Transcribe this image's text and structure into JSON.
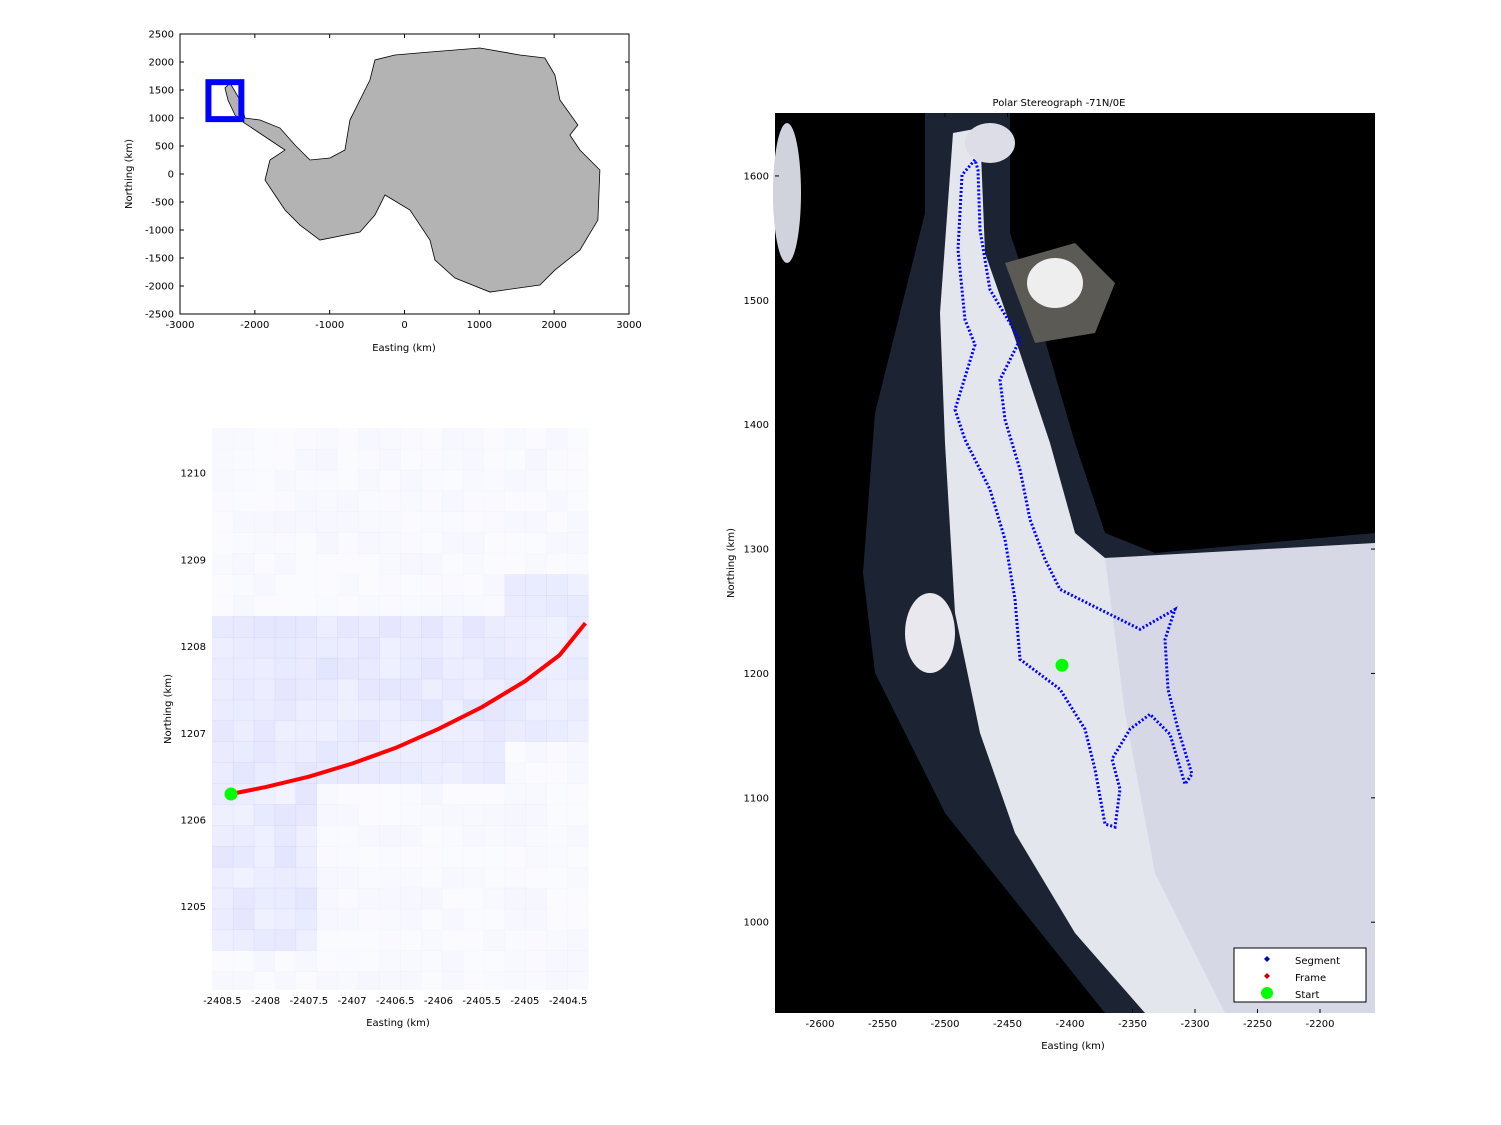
{
  "chart_data": [
    {
      "type": "map",
      "title": "",
      "xlabel": "Easting (km)",
      "ylabel": "Northing (km)",
      "xlim": [
        -3000,
        3000
      ],
      "ylim": [
        -2500,
        2500
      ],
      "xticks": [
        -3000,
        -2000,
        -1000,
        0,
        1000,
        2000,
        3000
      ],
      "yticks": [
        -2500,
        -2000,
        -1500,
        -1000,
        -500,
        0,
        500,
        1000,
        1500,
        2000,
        2500
      ],
      "grid": false,
      "land_color": "#b3b3b3",
      "coastline": [
        [
          -2332,
          1625
        ],
        [
          -2198,
          1321
        ],
        [
          -2132,
          1000
        ],
        [
          -1931,
          964
        ],
        [
          -1664,
          821
        ],
        [
          -1464,
          518
        ],
        [
          -1263,
          250
        ],
        [
          -996,
          285
        ],
        [
          -796,
          428
        ],
        [
          -729,
          964
        ],
        [
          -462,
          1678
        ],
        [
          -395,
          2036
        ],
        [
          -128,
          2125
        ],
        [
          340,
          2179
        ],
        [
          1008,
          2250
        ],
        [
          1542,
          2125
        ],
        [
          1876,
          2071
        ],
        [
          2010,
          1768
        ],
        [
          2077,
          1321
        ],
        [
          2317,
          875
        ],
        [
          2210,
          696
        ],
        [
          2344,
          428
        ],
        [
          2611,
          71
        ],
        [
          2584,
          -822
        ],
        [
          2344,
          -1358
        ],
        [
          2010,
          -1715
        ],
        [
          1810,
          -1983
        ],
        [
          1142,
          -2108
        ],
        [
          674,
          -1858
        ],
        [
          407,
          -1536
        ],
        [
          340,
          -1179
        ],
        [
          73,
          -643
        ],
        [
          -261,
          -375
        ],
        [
          -395,
          -733
        ],
        [
          -595,
          -1036
        ],
        [
          -1130,
          -1179
        ],
        [
          -1397,
          -911
        ],
        [
          -1597,
          -643
        ],
        [
          -1731,
          -375
        ],
        [
          -1864,
          -108
        ],
        [
          -1798,
          250
        ],
        [
          -1597,
          428
        ],
        [
          -1798,
          607
        ],
        [
          -1998,
          786
        ],
        [
          -2158,
          928
        ],
        [
          -2265,
          1053
        ],
        [
          -2359,
          1321
        ],
        [
          -2399,
          1536
        ]
      ],
      "region_box": {
        "x": [
          -2620,
          -2180
        ],
        "y": [
          980,
          1640
        ],
        "color": "#0000ff"
      }
    },
    {
      "type": "line",
      "title": "",
      "xlabel": "Easting (km)",
      "ylabel": "Northing (km)",
      "xlim": [
        -2408.62,
        -2404.27
      ],
      "ylim": [
        1204.04,
        1210.52
      ],
      "xticks": [
        -2408.5,
        -2408,
        -2407.5,
        -2407,
        -2406.5,
        -2406,
        -2405.5,
        -2405,
        -2404.5
      ],
      "yticks": [
        1205,
        1206,
        1207,
        1208,
        1209,
        1210
      ],
      "grid": false,
      "series": [
        {
          "color": "#ff0000",
          "x": [
            -2408.4,
            -2408.0,
            -2407.5,
            -2407.0,
            -2406.5,
            -2406.0,
            -2405.5,
            -2405.0,
            -2404.6,
            -2404.3
          ],
          "y": [
            1206.3,
            1206.38,
            1206.5,
            1206.65,
            1206.83,
            1207.05,
            1207.3,
            1207.6,
            1207.9,
            1208.27
          ]
        }
      ],
      "start": {
        "x": -2408.4,
        "y": 1206.3,
        "color": "#00ff00"
      }
    },
    {
      "type": "scatter",
      "title": "Polar Stereograph -71N/0E",
      "xlabel": "Easting (km)",
      "ylabel": "Northing (km)",
      "xlim": [
        -2636,
        -2156
      ],
      "ylim": [
        927,
        1650.6
      ],
      "xticks": [
        -2600,
        -2550,
        -2500,
        -2450,
        -2400,
        -2350,
        -2300,
        -2250,
        -2200
      ],
      "yticks": [
        1000,
        1100,
        1200,
        1300,
        1400,
        1500,
        1600
      ],
      "grid": false,
      "legend": {
        "position": "bottom-right",
        "entries": [
          {
            "label": "Segment",
            "color": "#0000cc"
          },
          {
            "label": "Frame",
            "color": "#cc0000"
          },
          {
            "label": "Start",
            "color": "#00ff00"
          }
        ]
      },
      "segment": {
        "color": "#0000ff",
        "points": [
          [
            -2476,
            1613
          ],
          [
            -2486.4,
            1600.8
          ],
          [
            -2489.6,
            1540.6
          ],
          [
            -2484,
            1484.4
          ],
          [
            -2476,
            1464.3
          ],
          [
            -2492,
            1412.1
          ],
          [
            -2484,
            1388
          ],
          [
            -2464,
            1347.9
          ],
          [
            -2452,
            1307.7
          ],
          [
            -2444,
            1259.5
          ],
          [
            -2440,
            1211.4
          ],
          [
            -2408,
            1187.3
          ],
          [
            -2388,
            1155.2
          ],
          [
            -2380,
            1123
          ],
          [
            -2372,
            1078.9
          ],
          [
            -2364,
            1076.5
          ],
          [
            -2360,
            1107
          ],
          [
            -2366.4,
            1131.1
          ],
          [
            -2352,
            1155.2
          ],
          [
            -2336,
            1167.2
          ],
          [
            -2320,
            1151.1
          ],
          [
            -2308,
            1111
          ],
          [
            -2302.4,
            1119
          ],
          [
            -2313.6,
            1155.2
          ],
          [
            -2321.6,
            1187.3
          ],
          [
            -2324,
            1227.4
          ],
          [
            -2316,
            1251.5
          ],
          [
            -2344,
            1235.5
          ],
          [
            -2376,
            1251.5
          ],
          [
            -2408,
            1267.6
          ],
          [
            -2420,
            1291.7
          ],
          [
            -2432,
            1323.8
          ],
          [
            -2440,
            1363.9
          ],
          [
            -2452,
            1404.1
          ],
          [
            -2456,
            1436.2
          ],
          [
            -2440,
            1468.3
          ],
          [
            -2464,
            1508.5
          ],
          [
            -2472,
            1556.6
          ],
          [
            -2473.6,
            1604.8
          ],
          [
            -2476,
            1613
          ]
        ]
      },
      "start": {
        "x": -2406.4,
        "y": 1206.6,
        "color": "#00ff00"
      }
    }
  ]
}
